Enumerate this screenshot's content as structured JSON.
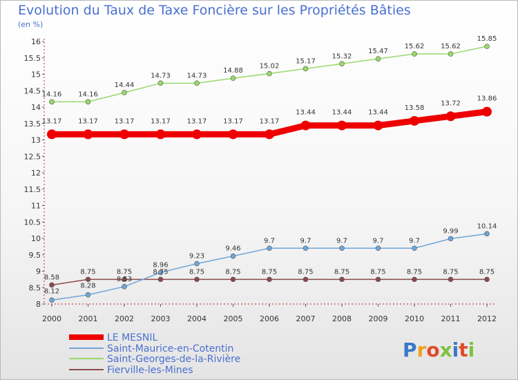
{
  "chart_data": {
    "type": "line",
    "title": "Evolution du Taux de Taxe Foncière sur les Propriétés Bâties",
    "unit_label": "(en %)",
    "x": [
      "2000",
      "2001",
      "2002",
      "2003",
      "2004",
      "2005",
      "2006",
      "2007",
      "2008",
      "2009",
      "2010",
      "2011",
      "2012"
    ],
    "ylim": [
      8,
      16
    ],
    "yticks": [
      "8",
      "8.5",
      "9",
      "9.5",
      "10",
      "10.5",
      "11",
      "11.5",
      "12",
      "12.5",
      "13",
      "13.5",
      "14",
      "14.5",
      "15",
      "15.5",
      "16"
    ],
    "grid": false,
    "legend_position": "bottom-left",
    "series": [
      {
        "name": "LE MESNIL",
        "color": "#ee0000",
        "emphasis": true,
        "values": [
          13.17,
          13.17,
          13.17,
          13.17,
          13.17,
          13.17,
          13.17,
          13.44,
          13.44,
          13.44,
          13.58,
          13.72,
          13.86
        ],
        "labels": [
          "13.17",
          "13.17",
          "13.17",
          "13.17",
          "13.17",
          "13.17",
          "13.17",
          "13.44",
          "13.44",
          "13.44",
          "13.58",
          "13.72",
          "13.86"
        ]
      },
      {
        "name": "Saint-Maurice-en-Cotentin",
        "color": "#6ea6d8",
        "values": [
          8.12,
          8.28,
          8.53,
          8.96,
          9.23,
          9.46,
          9.7,
          9.7,
          9.7,
          9.7,
          9.7,
          9.99,
          10.14
        ],
        "labels": [
          "8.12",
          "8.28",
          "8.53",
          "8.96",
          "9.23",
          "9.46",
          "9.7",
          "9.7",
          "9.7",
          "9.7",
          "9.7",
          "9.99",
          "10.14"
        ]
      },
      {
        "name": "Saint-Georges-de-la-Rivière",
        "color": "#99d86c",
        "values": [
          14.16,
          14.16,
          14.44,
          14.73,
          14.73,
          14.88,
          15.02,
          15.17,
          15.32,
          15.47,
          15.62,
          15.62,
          15.85
        ],
        "labels": [
          "14.16",
          "14.16",
          "14.44",
          "14.73",
          "14.73",
          "14.88",
          "15.02",
          "15.17",
          "15.32",
          "15.47",
          "15.62",
          "15.62",
          "15.85"
        ]
      },
      {
        "name": "Fierville-les-Mines",
        "color": "#8a4a4a",
        "values": [
          8.58,
          8.75,
          8.75,
          8.75,
          8.75,
          8.75,
          8.75,
          8.75,
          8.75,
          8.75,
          8.75,
          8.75,
          8.75
        ],
        "labels": [
          "8.58",
          "8.75",
          "8.75",
          "8.75",
          "8.75",
          "8.75",
          "8.75",
          "8.75",
          "8.75",
          "8.75",
          "8.75",
          "8.75",
          "8.75"
        ]
      }
    ]
  },
  "logo": {
    "text": "Proxiti",
    "letter_colors": [
      "#3a78c8",
      "#f0a020",
      "#e04a2a",
      "#80c040",
      "#3a78c8",
      "#e04a2a",
      "#80c040"
    ]
  }
}
